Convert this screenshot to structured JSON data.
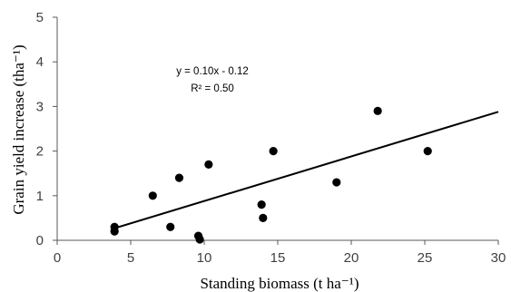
{
  "chart_data": {
    "type": "scatter",
    "title": "",
    "xlabel": "Standing biomass (t ha⁻¹)",
    "ylabel": "Grain yield increase (tha⁻¹)",
    "xlim": [
      0,
      30
    ],
    "ylim": [
      0,
      5
    ],
    "x_ticks": [
      0,
      5,
      10,
      15,
      20,
      25,
      30
    ],
    "y_ticks": [
      0,
      1,
      2,
      3,
      4,
      5
    ],
    "grid": false,
    "legend": "none",
    "point_color": "#000000",
    "series": [
      {
        "points": [
          {
            "x": 3.9,
            "y": 0.3
          },
          {
            "x": 3.9,
            "y": 0.2
          },
          {
            "x": 6.5,
            "y": 1.0
          },
          {
            "x": 7.7,
            "y": 0.3
          },
          {
            "x": 8.3,
            "y": 1.4
          },
          {
            "x": 9.6,
            "y": 0.1
          },
          {
            "x": 9.7,
            "y": 0.02
          },
          {
            "x": 10.3,
            "y": 1.7
          },
          {
            "x": 13.9,
            "y": 0.8
          },
          {
            "x": 14.0,
            "y": 0.5
          },
          {
            "x": 14.7,
            "y": 2.0
          },
          {
            "x": 19.0,
            "y": 1.3
          },
          {
            "x": 21.8,
            "y": 2.9
          },
          {
            "x": 25.2,
            "y": 2.0
          }
        ]
      }
    ],
    "trendline": {
      "slope": 0.1,
      "intercept": -0.12,
      "x_range": [
        3.9,
        30
      ],
      "equation": "y = 0.10x - 0.12",
      "r_squared": "R² = 0.50"
    }
  }
}
